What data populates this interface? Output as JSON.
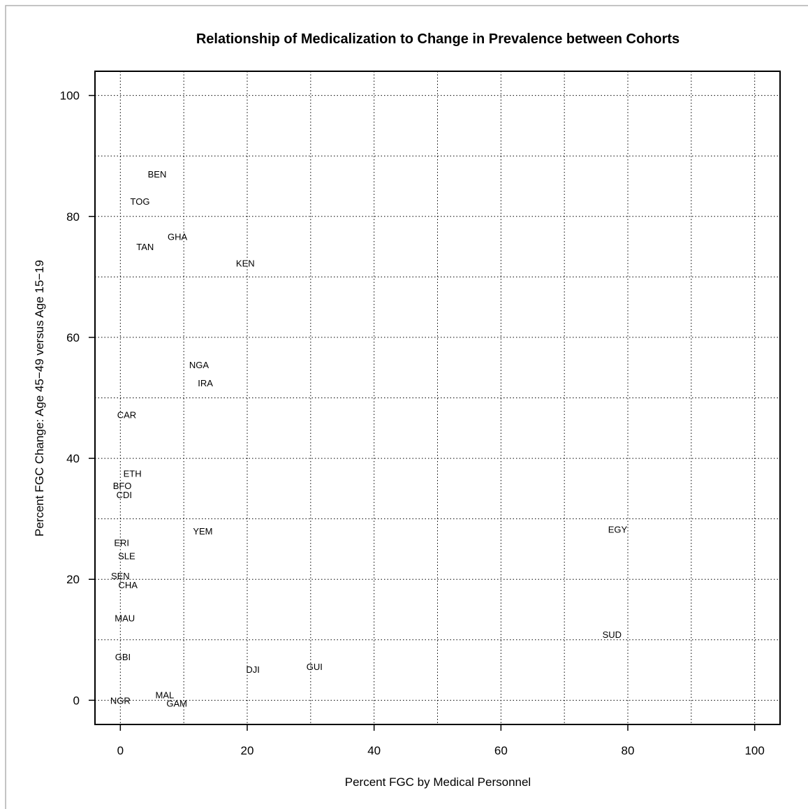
{
  "chart_data": {
    "type": "scatter",
    "title": "Relationship of Medicalization to Change in Prevalence between Cohorts",
    "xlabel": "Percent FGC by Medical Personnel",
    "ylabel": "Percent FGC Change: Age 45−49 versus Age 15−19",
    "xlim": [
      -4,
      104
    ],
    "ylim": [
      -4,
      104
    ],
    "xticks": [
      0,
      20,
      40,
      60,
      80,
      100
    ],
    "yticks": [
      0,
      20,
      40,
      60,
      80,
      100
    ],
    "grid": true,
    "grid_step": 10,
    "points": [
      {
        "label": "BEN",
        "x": 5.8,
        "y": 87.0
      },
      {
        "label": "TOG",
        "x": 3.1,
        "y": 82.5
      },
      {
        "label": "GHA",
        "x": 9.0,
        "y": 76.7
      },
      {
        "label": "TAN",
        "x": 3.9,
        "y": 75.0
      },
      {
        "label": "KEN",
        "x": 19.7,
        "y": 72.3
      },
      {
        "label": "NGA",
        "x": 12.4,
        "y": 55.5
      },
      {
        "label": "IRA",
        "x": 13.4,
        "y": 52.5
      },
      {
        "label": "CAR",
        "x": 1.0,
        "y": 47.2
      },
      {
        "label": "ETH",
        "x": 1.9,
        "y": 37.5
      },
      {
        "label": "BFO",
        "x": 0.3,
        "y": 35.5
      },
      {
        "label": "CDI",
        "x": 0.6,
        "y": 34.0
      },
      {
        "label": "YEM",
        "x": 13.0,
        "y": 28.0
      },
      {
        "label": "EGY",
        "x": 78.4,
        "y": 28.3
      },
      {
        "label": "ERI",
        "x": 0.2,
        "y": 26.1
      },
      {
        "label": "SLE",
        "x": 1.0,
        "y": 23.9
      },
      {
        "label": "SEN",
        "x": 0.0,
        "y": 20.6
      },
      {
        "label": "CHA",
        "x": 1.2,
        "y": 19.1
      },
      {
        "label": "MAU",
        "x": 0.7,
        "y": 13.6
      },
      {
        "label": "SUD",
        "x": 77.5,
        "y": 10.9
      },
      {
        "label": "GBI",
        "x": 0.4,
        "y": 7.2
      },
      {
        "label": "GUI",
        "x": 30.6,
        "y": 5.6
      },
      {
        "label": "DJI",
        "x": 20.9,
        "y": 5.1
      },
      {
        "label": "MAL",
        "x": 7.0,
        "y": 0.9
      },
      {
        "label": "NGR",
        "x": 0.0,
        "y": 0.0
      },
      {
        "label": "GAM",
        "x": 8.9,
        "y": -0.5
      }
    ]
  }
}
